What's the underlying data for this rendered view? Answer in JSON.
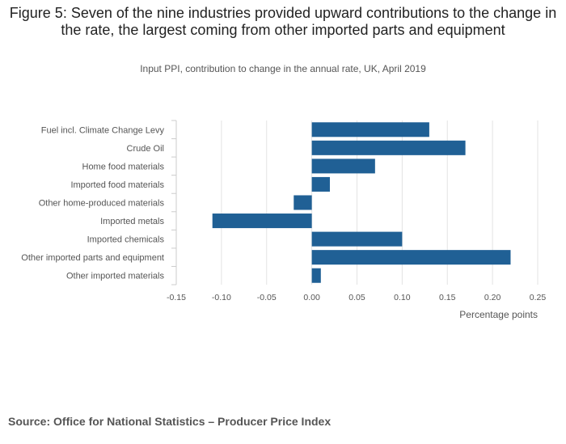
{
  "title": "Figure 5: Seven of the nine industries provided upward contributions to the change in the rate, the largest coming from other imported parts and equipment",
  "subtitle": "Input PPI, contribution to change in the annual rate, UK, April 2019",
  "source": "Source: Office for National Statistics – Producer Price Index",
  "colors": {
    "bar": "#206095",
    "grid": "#e3e3e3",
    "axis": "#cccccc",
    "text": "#555555"
  },
  "chart_data": {
    "type": "bar",
    "orientation": "horizontal",
    "categories": [
      "Fuel incl. Climate Change Levy",
      "Crude Oil",
      "Home food materials",
      "Imported food materials",
      "Other home-produced materials",
      "Imported metals",
      "Imported chemicals",
      "Other imported parts and equipment",
      "Other imported materials"
    ],
    "values": [
      0.13,
      0.17,
      0.07,
      0.02,
      -0.02,
      -0.11,
      0.1,
      0.22,
      0.01
    ],
    "xlabel": "Percentage points",
    "ylabel": "",
    "xlim": [
      -0.15,
      0.25
    ],
    "xticks": [
      -0.15,
      -0.1,
      -0.05,
      0.0,
      0.05,
      0.1,
      0.15,
      0.2,
      0.25
    ],
    "xtick_labels": [
      "-0.15",
      "-0.10",
      "-0.05",
      "0.00",
      "0.05",
      "0.10",
      "0.15",
      "0.20",
      "0.25"
    ],
    "grid": true,
    "legend": "none"
  }
}
